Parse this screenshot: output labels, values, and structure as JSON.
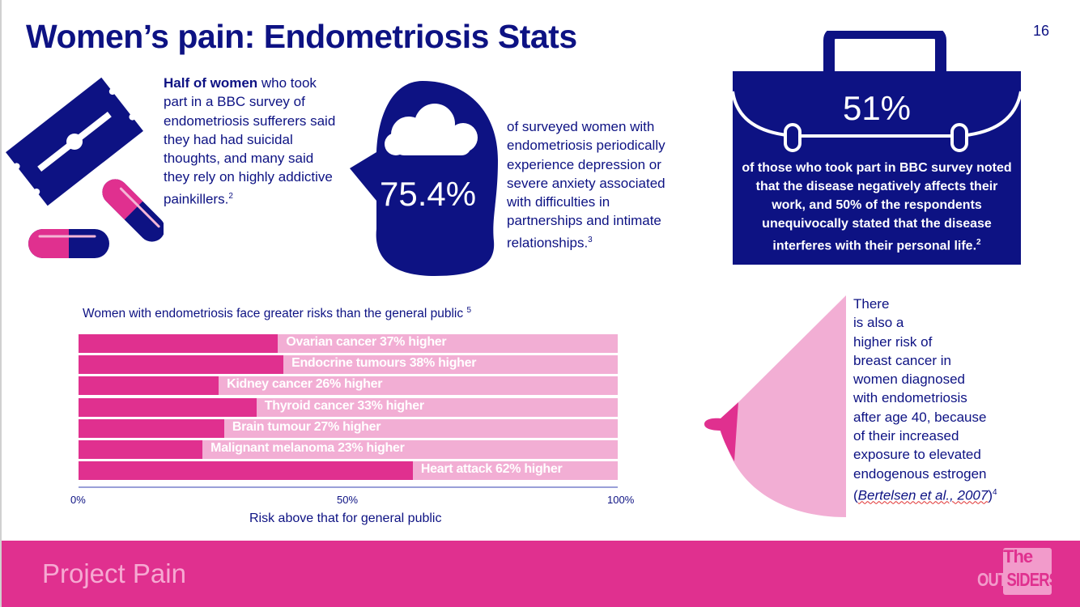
{
  "slide": {
    "title": "Women’s pain: Endometriosis Stats",
    "page_number": "16"
  },
  "block1": {
    "bold": "Half of women",
    "text": " who took part in a BBC survey of endometriosis sufferers said they had had suicidal thoughts, and many said they rely on highly addictive painkillers.",
    "sup": "2",
    "icon": "razor-blade-and-pills-icon"
  },
  "block2": {
    "stat": "75.4%",
    "text": "of surveyed women with endometriosis periodically experience depression or severe anxiety associated with difficulties in partnerships and intimate relationships.",
    "sup": "3",
    "icon": "head-with-cloud-icon"
  },
  "block3": {
    "stat": "51%",
    "text": "of those who took part in BBC survey noted that the disease negatively affects their work, and 50% of the respondents unequivocally stated that the disease interferes with their personal life.",
    "sup": "2",
    "icon": "briefcase-icon"
  },
  "block4": {
    "text": "There\nis also a\nhigher risk of\nbreast cancer in\nwomen diagnosed\nwith endometriosis\nafter age 40, because\nof their increased\nexposure to elevated\nendogenous estrogen",
    "cite_open": "(",
    "cite": "Bertelsen et al., 2007",
    "cite_close": ")",
    "sup": "4",
    "icon": "breast-icon"
  },
  "chart_data": {
    "type": "bar",
    "orientation": "horizontal",
    "stacked_to": 100,
    "title": "Women with endometriosis face greater risks than the general public",
    "title_sup": "5",
    "xlabel": "Risk above that for general public",
    "xlim": [
      0,
      100
    ],
    "ticks": [
      "0%",
      "50%",
      "100%"
    ],
    "categories": [
      "Ovarian cancer",
      "Endocrine tumours",
      "Kidney cancer",
      "Thyroid cancer",
      "Brain tumour",
      "Malignant melanoma",
      "Heart attack"
    ],
    "values": [
      37,
      38,
      26,
      33,
      27,
      23,
      62
    ],
    "labels": [
      "Ovarian cancer 37% higher",
      "Endocrine tumours 38% higher",
      "Kidney cancer 26% higher",
      "Thyroid cancer 33% higher",
      "Brain tumour 27% higher",
      "Malignant melanoma 23% higher",
      "Heart attack 62% higher"
    ],
    "colors": {
      "value": "#e0308f",
      "remainder": "#f2aed4"
    }
  },
  "footer": {
    "title": "Project Pain",
    "logo_line1": "The",
    "logo_line2a": "OUT",
    "logo_line2b": "SIDERS"
  },
  "colors": {
    "navy": "#0d1283",
    "pink": "#e0308f",
    "light_pink": "#f2aed4"
  }
}
